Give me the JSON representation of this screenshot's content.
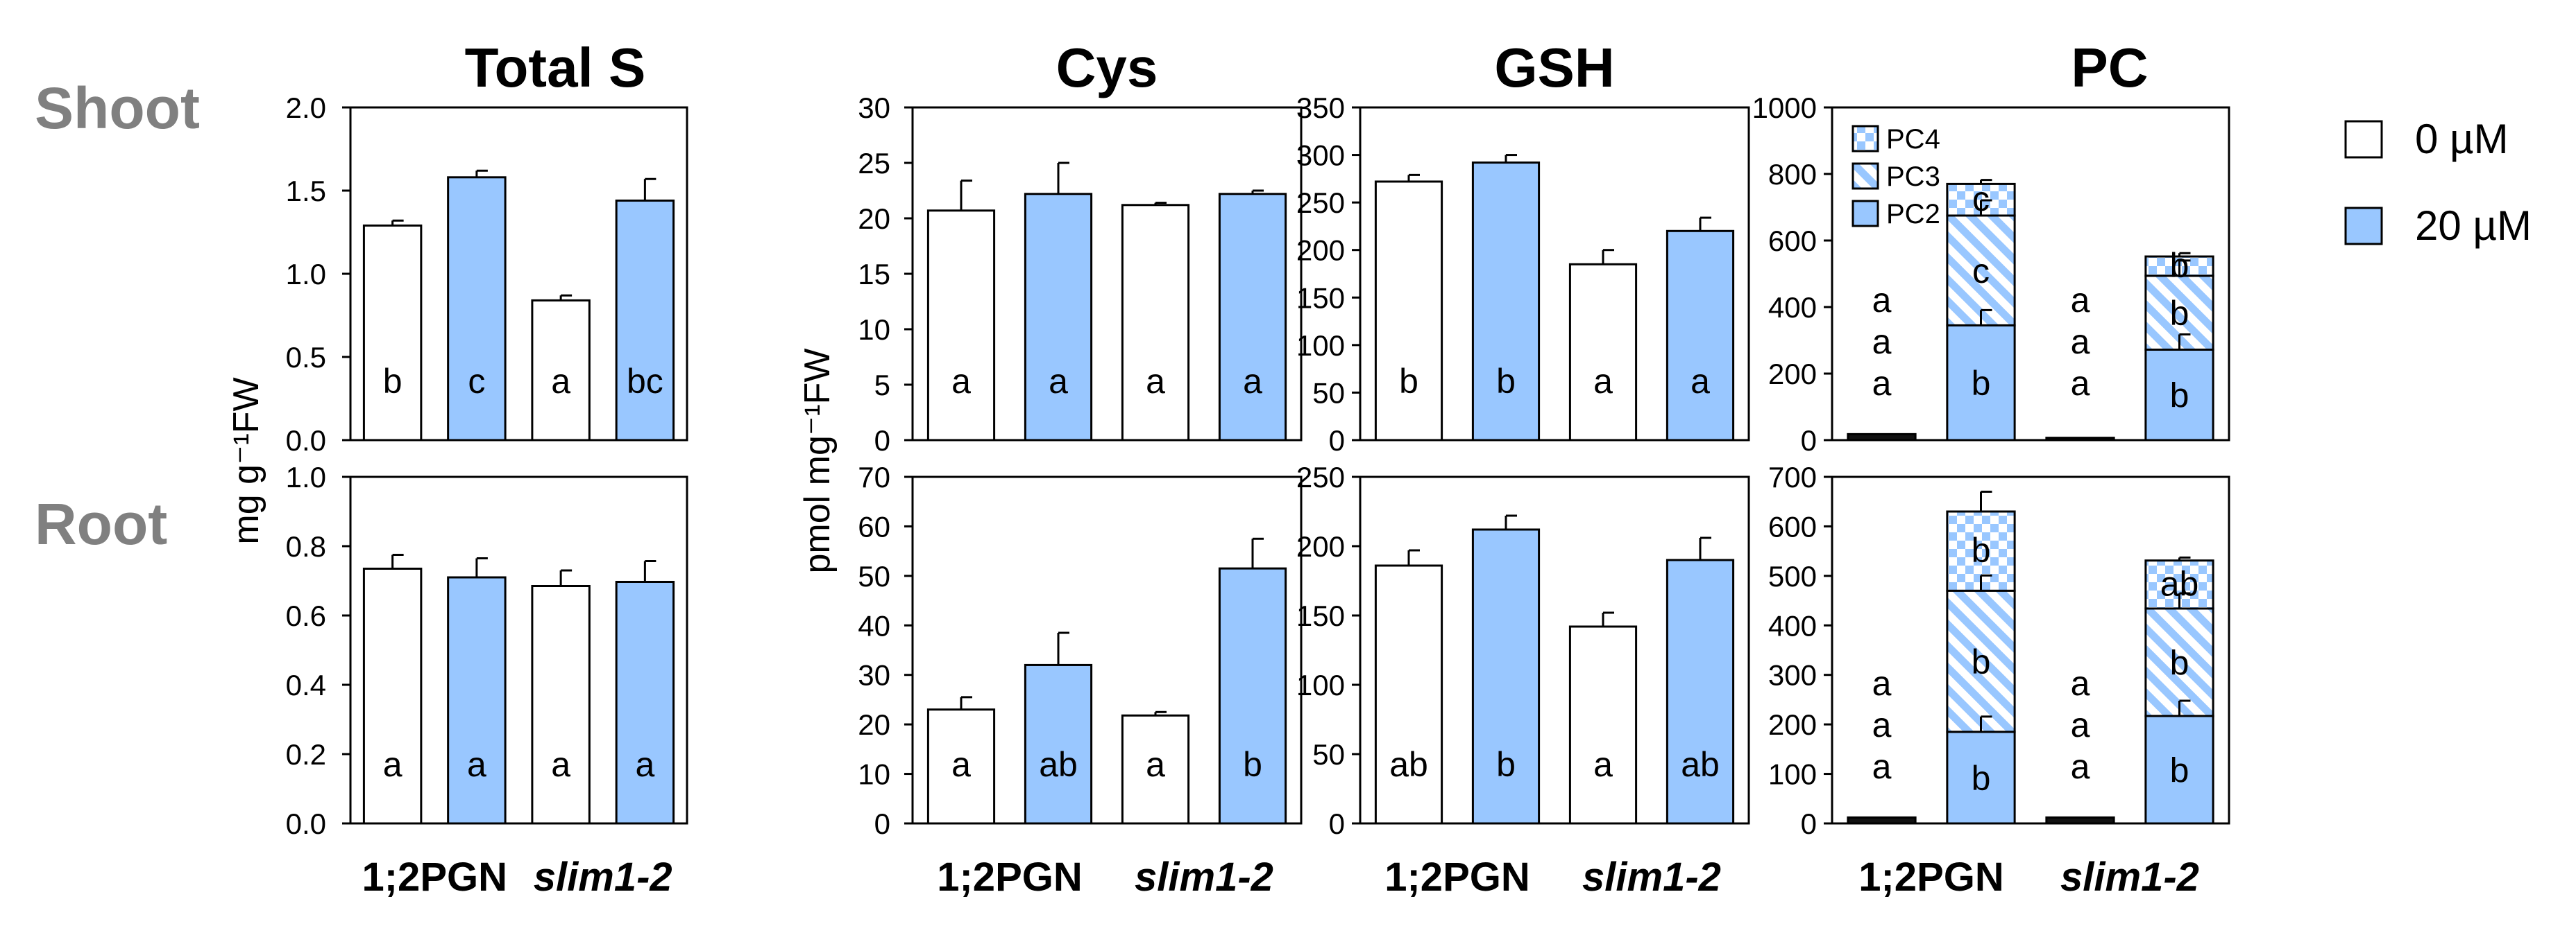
{
  "row_labels": [
    "Shoot",
    "Root"
  ],
  "ylabels": {
    "left": "mg g⁻¹FW",
    "middle": "pmol mg⁻¹FW"
  },
  "x_categories": [
    "1;2PGN",
    "slim1-2"
  ],
  "legend": {
    "items": [
      {
        "label": "0 µM",
        "color": "#ffffff"
      },
      {
        "label": "20 µM",
        "color": "#99c7ff"
      }
    ]
  },
  "pc_legend": [
    "PC4",
    "PC3",
    "PC2"
  ],
  "colors": {
    "blue": "#99c7ff",
    "white": "#ffffff",
    "stroke": "#000000",
    "label": "#808080"
  },
  "chart_data": [
    {
      "type": "bar",
      "title": "Total S",
      "row": "Shoot",
      "ylabel": "mg g⁻¹FW",
      "ylim": [
        0,
        2.0
      ],
      "yticks": [
        "0.0",
        "0.5",
        "1.0",
        "1.5",
        "2.0"
      ],
      "categories": [
        "1;2PGN",
        "1;2PGN",
        "slim1-2",
        "slim1-2"
      ],
      "series": [
        {
          "name": "0 µM",
          "values": [
            1.29,
            null,
            0.84,
            null
          ]
        },
        {
          "name": "20 µM",
          "values": [
            null,
            1.58,
            null,
            1.44
          ]
        }
      ],
      "errors": [
        0.03,
        0.04,
        0.03,
        0.13
      ],
      "letters": [
        "b",
        "c",
        "a",
        "bc"
      ]
    },
    {
      "type": "bar",
      "title": "Cys",
      "row": "Shoot",
      "ylim": [
        0,
        30
      ],
      "yticks": [
        "0",
        "5",
        "10",
        "15",
        "20",
        "25",
        "30"
      ],
      "categories": [
        "1;2PGN",
        "1;2PGN",
        "slim1-2",
        "slim1-2"
      ],
      "series": [
        {
          "name": "0 µM",
          "values": [
            20.7,
            null,
            21.2,
            null
          ]
        },
        {
          "name": "20 µM",
          "values": [
            null,
            22.2,
            null,
            22.2
          ]
        }
      ],
      "errors": [
        2.7,
        2.8,
        0.2,
        0.3
      ],
      "letters": [
        "a",
        "a",
        "a",
        "a"
      ]
    },
    {
      "type": "bar",
      "title": "GSH",
      "row": "Shoot",
      "ylim": [
        0,
        350
      ],
      "yticks": [
        "0",
        "50",
        "100",
        "150",
        "200",
        "250",
        "300",
        "350"
      ],
      "categories": [
        "1;2PGN",
        "1;2PGN",
        "slim1-2",
        "slim1-2"
      ],
      "series": [
        {
          "name": "0 µM",
          "values": [
            272,
            null,
            185,
            null
          ]
        },
        {
          "name": "20 µM",
          "values": [
            null,
            292,
            null,
            220
          ]
        }
      ],
      "errors": [
        7,
        8,
        15,
        14
      ],
      "letters": [
        "b",
        "b",
        "a",
        "a"
      ]
    },
    {
      "type": "stacked-bar",
      "title": "PC",
      "row": "Shoot",
      "ylim": [
        0,
        1000
      ],
      "yticks": [
        "0",
        "200",
        "400",
        "600",
        "800",
        "1000"
      ],
      "categories": [
        "1;2PGN",
        "1;2PGN",
        "slim1-2",
        "slim1-2"
      ],
      "series": [
        {
          "name": "PC2",
          "values": [
            8,
            345,
            3,
            272
          ]
        },
        {
          "name": "PC3",
          "values": [
            6,
            330,
            2,
            222
          ]
        },
        {
          "name": "PC4",
          "values": [
            4,
            95,
            2,
            58
          ]
        }
      ],
      "totals_errors": [
        4,
        12,
        2,
        10
      ],
      "letters_top": [
        "a",
        "c",
        "a",
        "b"
      ],
      "letters_mid": [
        "a",
        "c",
        "a",
        "b"
      ],
      "letters_bottom": [
        "a",
        "b",
        "a",
        "b"
      ]
    },
    {
      "type": "bar",
      "title": "",
      "row": "Root",
      "ylabel": "mg g⁻¹FW",
      "ylim": [
        0,
        1.0
      ],
      "yticks": [
        "0.0",
        "0.2",
        "0.4",
        "0.6",
        "0.8",
        "1.0"
      ],
      "categories": [
        "1;2PGN",
        "1;2PGN",
        "slim1-2",
        "slim1-2"
      ],
      "series": [
        {
          "name": "0 µM",
          "values": [
            0.735,
            null,
            0.685,
            null
          ]
        },
        {
          "name": "20 µM",
          "values": [
            null,
            0.71,
            null,
            0.697
          ]
        }
      ],
      "errors": [
        0.04,
        0.055,
        0.045,
        0.06
      ],
      "letters": [
        "a",
        "a",
        "a",
        "a"
      ]
    },
    {
      "type": "bar",
      "title": "",
      "row": "Root",
      "ylabel": "pmol mg⁻¹FW",
      "ylim": [
        0,
        70
      ],
      "yticks": [
        "0",
        "10",
        "20",
        "30",
        "40",
        "50",
        "60",
        "70"
      ],
      "categories": [
        "1;2PGN",
        "1;2PGN",
        "slim1-2",
        "slim1-2"
      ],
      "series": [
        {
          "name": "0 µM",
          "values": [
            23,
            null,
            21.8,
            null
          ]
        },
        {
          "name": "20 µM",
          "values": [
            null,
            32,
            null,
            51.5
          ]
        }
      ],
      "errors": [
        2.5,
        6.5,
        0.7,
        6.0
      ],
      "letters": [
        "a",
        "ab",
        "a",
        "b"
      ]
    },
    {
      "type": "bar",
      "title": "",
      "row": "Root",
      "ylim": [
        0,
        250
      ],
      "yticks": [
        "0",
        "50",
        "100",
        "150",
        "200",
        "250"
      ],
      "categories": [
        "1;2PGN",
        "1;2PGN",
        "slim1-2",
        "slim1-2"
      ],
      "series": [
        {
          "name": "0 µM",
          "values": [
            186,
            null,
            142,
            null
          ]
        },
        {
          "name": "20 µM",
          "values": [
            null,
            212,
            null,
            190
          ]
        }
      ],
      "errors": [
        11,
        10,
        10,
        16
      ],
      "letters": [
        "ab",
        "b",
        "a",
        "ab"
      ]
    },
    {
      "type": "stacked-bar",
      "title": "",
      "row": "Root",
      "ylim": [
        0,
        700
      ],
      "yticks": [
        "0",
        "100",
        "200",
        "300",
        "400",
        "500",
        "600",
        "700"
      ],
      "categories": [
        "1;2PGN",
        "1;2PGN",
        "slim1-2",
        "slim1-2"
      ],
      "series": [
        {
          "name": "PC2",
          "values": [
            7,
            185,
            7,
            217
          ]
        },
        {
          "name": "PC3",
          "values": [
            3,
            285,
            3,
            217
          ]
        },
        {
          "name": "PC4",
          "values": [
            2,
            160,
            2,
            97
          ]
        }
      ],
      "totals_errors": [
        2,
        40,
        2,
        6
      ],
      "letters_top": [
        "a",
        "b",
        "a",
        "ab"
      ],
      "letters_mid": [
        "a",
        "b",
        "a",
        "b"
      ],
      "letters_bottom": [
        "a",
        "b",
        "a",
        "b"
      ]
    }
  ]
}
